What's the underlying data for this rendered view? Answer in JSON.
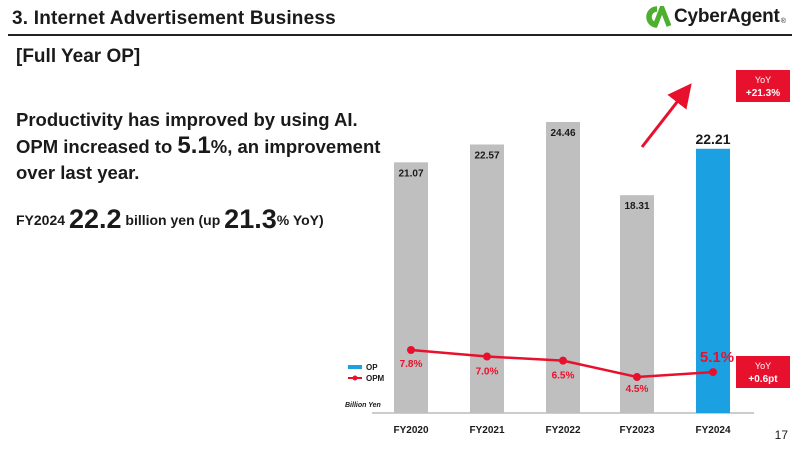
{
  "header": {
    "title": "3.  Internet Advertisement Business",
    "logo_text": "CyberAgent",
    "logo_mark": "®"
  },
  "section_label": "[Full Year OP]",
  "headline": {
    "line1": "Productivity has improved by using AI.",
    "line2_pre": "OPM increased to ",
    "line2_value": "5.1",
    "line2_post": "%, an improvement",
    "line3": "over last year."
  },
  "summary": {
    "year": "FY2024 ",
    "value": "22.2",
    "mid": " billion yen (up ",
    "pct": "21.3",
    "post": "% YoY)"
  },
  "chart_data": {
    "type": "bar",
    "categories": [
      "FY2020",
      "FY2021",
      "FY2022",
      "FY2023",
      "FY2024"
    ],
    "series": [
      {
        "name": "OP",
        "type": "bar",
        "values": [
          21.07,
          22.57,
          24.46,
          18.31,
          22.21
        ],
        "value_labels": [
          "21.07",
          "22.57",
          "24.46",
          "18.31",
          "22.21"
        ]
      },
      {
        "name": "OPM",
        "type": "line",
        "values": [
          7.8,
          7.0,
          6.5,
          4.5,
          5.1
        ],
        "value_labels": [
          "7.8%",
          "7.0%",
          "6.5%",
          "4.5%",
          "5.1%"
        ]
      }
    ],
    "unit_label": "Billion Yen",
    "legend": "left",
    "colors": {
      "bar": "#bfbfbf",
      "highlight_bar": "#1ba1e2",
      "line": "#e8112d",
      "accent": "#e8112d"
    },
    "annotations": [
      {
        "target": "OP FY2024",
        "line1": "YoY",
        "line2": "+21.3%"
      },
      {
        "target": "OPM FY2024",
        "line1": "YoY",
        "line2": "+0.6pt"
      }
    ]
  },
  "page_number": "17"
}
